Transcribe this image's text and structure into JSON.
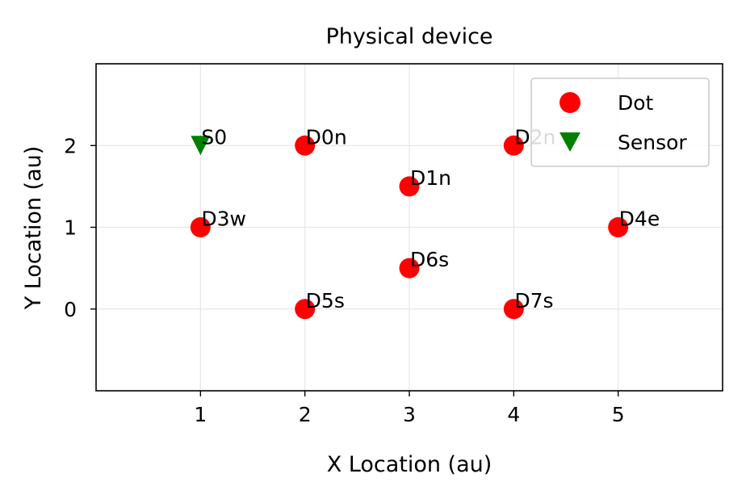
{
  "chart_data": {
    "type": "scatter",
    "title": "Physical device",
    "xlabel": "X Location (au)",
    "ylabel": "Y Location (au)",
    "xlim": [
      0,
      6
    ],
    "ylim": [
      -1,
      3
    ],
    "xticks": [
      1,
      2,
      3,
      4,
      5
    ],
    "yticks": [
      0,
      1,
      2
    ],
    "grid": true,
    "legend_position": "top-right",
    "series": [
      {
        "name": "Dot",
        "marker": "circle",
        "color": "#ff0000",
        "points": [
          {
            "x": 2,
            "y": 2,
            "label": "D0n"
          },
          {
            "x": 3,
            "y": 1.5,
            "label": "D1n"
          },
          {
            "x": 4,
            "y": 2,
            "label": "D2n"
          },
          {
            "x": 1,
            "y": 1,
            "label": "D3w"
          },
          {
            "x": 5,
            "y": 1,
            "label": "D4e"
          },
          {
            "x": 2,
            "y": 0,
            "label": "D5s"
          },
          {
            "x": 3,
            "y": 0.5,
            "label": "D6s"
          },
          {
            "x": 4,
            "y": 0,
            "label": "D7s"
          }
        ]
      },
      {
        "name": "Sensor",
        "marker": "triangle-down",
        "color": "#008000",
        "points": [
          {
            "x": 1,
            "y": 2,
            "label": "S0"
          }
        ]
      }
    ]
  }
}
